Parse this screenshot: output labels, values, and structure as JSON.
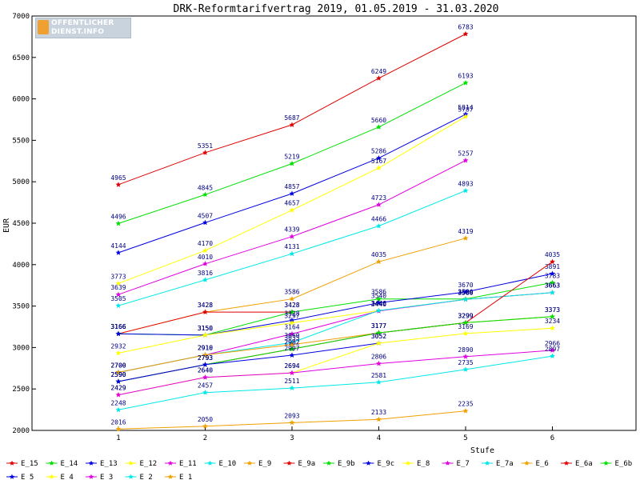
{
  "chart_data": {
    "type": "line",
    "title": "DRK-Reformtarifvertrag 2019, 01.05.2019 - 31.03.2020",
    "xlabel": "Stufe",
    "ylabel": "EUR",
    "categories": [
      "1",
      "2",
      "3",
      "4",
      "5",
      "6"
    ],
    "ylim": [
      2000,
      7000
    ],
    "yticks": [
      2000,
      2500,
      3000,
      3500,
      4000,
      4500,
      5000,
      5500,
      6000,
      6500,
      7000
    ],
    "grid": false,
    "legend_position": "bottom",
    "series": [
      {
        "name": "E_15",
        "color": "#e00000",
        "values": [
          4965,
          5351,
          5687,
          6249,
          6783,
          null
        ]
      },
      {
        "name": "E_14",
        "color": "#00e000",
        "values": [
          4496,
          4845,
          5219,
          5660,
          6193,
          null
        ]
      },
      {
        "name": "E_13",
        "color": "#0000e0",
        "values": [
          4144,
          4507,
          4857,
          5286,
          5814,
          null
        ]
      },
      {
        "name": "E_12",
        "color": "#ffff00",
        "values": [
          3773,
          4170,
          4657,
          5167,
          5787,
          null
        ]
      },
      {
        "name": "E_11",
        "color": "#e000e0",
        "values": [
          3639,
          4010,
          4339,
          4723,
          5257,
          null
        ]
      },
      {
        "name": "E_10",
        "color": "#00e8e8",
        "values": [
          3505,
          3816,
          4131,
          4466,
          4893,
          null
        ]
      },
      {
        "name": "E_9",
        "color": "#f0a000",
        "values": [
          3166,
          3428,
          3586,
          4035,
          4319,
          null
        ]
      },
      {
        "name": "E_9a",
        "color": "#e00000",
        "values": [
          3166,
          3428,
          3428,
          null,
          null,
          null
        ]
      },
      {
        "name": "E_9b",
        "color": "#00e000",
        "values": [
          3166,
          3150,
          3428,
          3586,
          3586,
          3783
        ]
      },
      {
        "name": "E_9c",
        "color": "#0000e0",
        "values": [
          3166,
          3150,
          3328,
          3540,
          3670,
          3891
        ]
      },
      {
        "name": "E_8",
        "color": "#ffff00",
        "values": [
          2932,
          3150,
          3297,
          3446,
          3580,
          3663
        ]
      },
      {
        "name": "E_7",
        "color": "#e000e0",
        "values": [
          2700,
          2910,
          3164,
          3440,
          3580,
          3663
        ]
      },
      {
        "name": "E_7a",
        "color": "#00e8e8",
        "values": [
          2700,
          2910,
          3060,
          3446,
          3580,
          3663
        ]
      },
      {
        "name": "E_6",
        "color": "#f0a000",
        "values": [
          2700,
          2910,
          3035,
          3177,
          3299,
          3373
        ]
      },
      {
        "name": "E_6a",
        "color": "#e00000",
        "values": [
          2590,
          2793,
          2982,
          3177,
          3299,
          4035
        ]
      },
      {
        "name": "E_6b",
        "color": "#00e000",
        "values": [
          2590,
          2793,
          2982,
          3177,
          3299,
          3373
        ]
      },
      {
        "name": "E_5",
        "color": "#0000e0",
        "values": [
          2590,
          2793,
          2907,
          3052,
          null,
          null
        ]
      },
      {
        "name": "E_4",
        "color": "#ffff00",
        "values": [
          2429,
          2640,
          2694,
          3052,
          3169,
          3234
        ]
      },
      {
        "name": "E_3",
        "color": "#e000e0",
        "values": [
          2429,
          2640,
          2694,
          2806,
          2890,
          2966
        ]
      },
      {
        "name": "E_2",
        "color": "#00e8e8",
        "values": [
          2248,
          2457,
          2511,
          2581,
          2735,
          2897
        ]
      },
      {
        "name": "E_1",
        "color": "#f0a000",
        "values": [
          2016,
          2050,
          2093,
          2133,
          2235,
          null
        ]
      }
    ]
  },
  "logo": {
    "line1": "OFFENTLICHER",
    "line2": "DIENST.INFO"
  }
}
